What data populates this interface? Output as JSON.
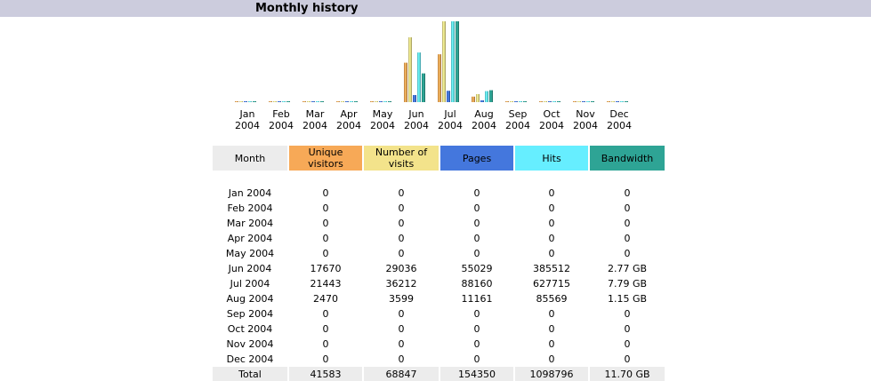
{
  "header": {
    "title": "Monthly history"
  },
  "colors": {
    "unique": "#f7a957",
    "visits": "#f3e38b",
    "pages": "#4477dd",
    "hits": "#66eeff",
    "bandwidth": "#2ea495",
    "header_bg": "#ccccdd",
    "total_bg": "#ececec"
  },
  "table": {
    "headers": {
      "month": "Month",
      "unique": "Unique visitors",
      "visits": "Number of visits",
      "pages": "Pages",
      "hits": "Hits",
      "bandwidth": "Bandwidth"
    },
    "rows": [
      {
        "month": "Jan 2004",
        "unique": "0",
        "visits": "0",
        "pages": "0",
        "hits": "0",
        "bandwidth": "0"
      },
      {
        "month": "Feb 2004",
        "unique": "0",
        "visits": "0",
        "pages": "0",
        "hits": "0",
        "bandwidth": "0"
      },
      {
        "month": "Mar 2004",
        "unique": "0",
        "visits": "0",
        "pages": "0",
        "hits": "0",
        "bandwidth": "0"
      },
      {
        "month": "Apr 2004",
        "unique": "0",
        "visits": "0",
        "pages": "0",
        "hits": "0",
        "bandwidth": "0"
      },
      {
        "month": "May 2004",
        "unique": "0",
        "visits": "0",
        "pages": "0",
        "hits": "0",
        "bandwidth": "0"
      },
      {
        "month": "Jun 2004",
        "unique": "17670",
        "visits": "29036",
        "pages": "55029",
        "hits": "385512",
        "bandwidth": "2.77 GB"
      },
      {
        "month": "Jul 2004",
        "unique": "21443",
        "visits": "36212",
        "pages": "88160",
        "hits": "627715",
        "bandwidth": "7.79 GB"
      },
      {
        "month": "Aug 2004",
        "unique": "2470",
        "visits": "3599",
        "pages": "11161",
        "hits": "85569",
        "bandwidth": "1.15 GB"
      },
      {
        "month": "Sep 2004",
        "unique": "0",
        "visits": "0",
        "pages": "0",
        "hits": "0",
        "bandwidth": "0"
      },
      {
        "month": "Oct 2004",
        "unique": "0",
        "visits": "0",
        "pages": "0",
        "hits": "0",
        "bandwidth": "0"
      },
      {
        "month": "Nov 2004",
        "unique": "0",
        "visits": "0",
        "pages": "0",
        "hits": "0",
        "bandwidth": "0"
      },
      {
        "month": "Dec 2004",
        "unique": "0",
        "visits": "0",
        "pages": "0",
        "hits": "0",
        "bandwidth": "0"
      }
    ],
    "total": {
      "month": "Total",
      "unique": "41583",
      "visits": "68847",
      "pages": "154350",
      "hits": "1098796",
      "bandwidth": "11.70 GB"
    }
  },
  "chart_data": {
    "type": "bar",
    "categories": [
      [
        "Jan",
        "2004"
      ],
      [
        "Feb",
        "2004"
      ],
      [
        "Mar",
        "2004"
      ],
      [
        "Apr",
        "2004"
      ],
      [
        "May",
        "2004"
      ],
      [
        "Jun",
        "2004"
      ],
      [
        "Jul",
        "2004"
      ],
      [
        "Aug",
        "2004"
      ],
      [
        "Sep",
        "2004"
      ],
      [
        "Oct",
        "2004"
      ],
      [
        "Nov",
        "2004"
      ],
      [
        "Dec",
        "2004"
      ]
    ],
    "series": [
      {
        "key": "unique",
        "values": [
          0,
          0,
          0,
          0,
          0,
          17670,
          21443,
          2470,
          0,
          0,
          0,
          0
        ]
      },
      {
        "key": "visits",
        "values": [
          0,
          0,
          0,
          0,
          0,
          29036,
          36212,
          3599,
          0,
          0,
          0,
          0
        ]
      },
      {
        "key": "pages",
        "values": [
          0,
          0,
          0,
          0,
          0,
          55029,
          88160,
          11161,
          0,
          0,
          0,
          0
        ]
      },
      {
        "key": "hits",
        "values": [
          0,
          0,
          0,
          0,
          0,
          385512,
          627715,
          85569,
          0,
          0,
          0,
          0
        ]
      },
      {
        "key": "bandwidth",
        "values": [
          0,
          0,
          0,
          0,
          0,
          2.77,
          7.79,
          1.15,
          0,
          0,
          0,
          0
        ]
      }
    ],
    "groups": [
      [
        "unique",
        "visits"
      ],
      [
        "pages",
        "hits"
      ],
      [
        "bandwidth"
      ]
    ]
  }
}
